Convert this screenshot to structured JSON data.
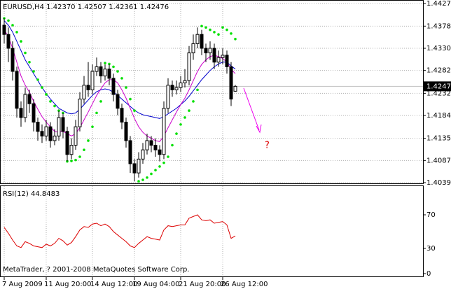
{
  "chart_data": [
    {
      "type": "candlestick",
      "title": "EURUSD,H4  1.42370 1.42507 1.42361 1.42476",
      "annotation": "?",
      "grid": true,
      "categories": [
        "7 Aug 2009",
        null,
        null,
        null,
        null,
        null,
        null,
        null,
        null,
        null,
        "11 Aug 20:00",
        null,
        null,
        null,
        null,
        null,
        null,
        null,
        null,
        null,
        null,
        "14 Aug 12:00",
        null,
        null,
        null,
        null,
        null,
        null,
        null,
        null,
        null,
        "19 Aug 04:00",
        null,
        null,
        null,
        null,
        null,
        null,
        null,
        null,
        null,
        null,
        "21 Aug 20:00",
        null,
        null,
        null,
        null,
        null,
        null,
        null,
        null,
        null,
        "26 Aug 12:00",
        null,
        null,
        null
      ],
      "open": [
        1.438,
        1.436,
        1.433,
        1.428,
        1.42,
        1.418,
        1.423,
        1.421,
        1.417,
        1.415,
        1.414,
        1.416,
        1.413,
        1.414,
        1.418,
        1.415,
        1.41,
        1.412,
        1.416,
        1.422,
        1.425,
        1.424,
        1.428,
        1.429,
        1.427,
        1.4285,
        1.4265,
        1.423,
        1.42,
        1.417,
        1.413,
        1.408,
        1.406,
        1.409,
        1.411,
        1.413,
        1.412,
        1.411,
        1.41,
        1.42,
        1.425,
        1.424,
        1.4245,
        1.4255,
        1.426,
        1.432,
        1.434,
        1.436,
        1.433,
        1.432,
        1.433,
        1.43,
        1.431,
        1.4315,
        1.429,
        1.4237
      ],
      "high": [
        1.4395,
        1.4375,
        1.4345,
        1.429,
        1.4215,
        1.4245,
        1.424,
        1.422,
        1.418,
        1.4165,
        1.4175,
        1.417,
        1.4155,
        1.4195,
        1.419,
        1.416,
        1.4135,
        1.4175,
        1.4235,
        1.427,
        1.43,
        1.4295,
        1.431,
        1.43,
        1.4295,
        1.4295,
        1.4275,
        1.424,
        1.421,
        1.418,
        1.414,
        1.409,
        1.4105,
        1.4125,
        1.4145,
        1.414,
        1.4135,
        1.412,
        1.4215,
        1.4265,
        1.426,
        1.426,
        1.427,
        1.4285,
        1.4335,
        1.436,
        1.4375,
        1.437,
        1.434,
        1.4345,
        1.434,
        1.4325,
        1.433,
        1.4325,
        1.43,
        1.42507
      ],
      "low": [
        1.434,
        1.43,
        1.426,
        1.418,
        1.416,
        1.417,
        1.419,
        1.415,
        1.413,
        1.4125,
        1.413,
        1.4115,
        1.412,
        1.413,
        1.4135,
        1.4085,
        1.409,
        1.411,
        1.415,
        1.421,
        1.4225,
        1.423,
        1.427,
        1.4255,
        1.426,
        1.425,
        1.4215,
        1.4185,
        1.4155,
        1.4115,
        1.406,
        1.4042,
        1.405,
        1.408,
        1.41,
        1.4105,
        1.4095,
        1.4085,
        1.409,
        1.419,
        1.4225,
        1.423,
        1.4235,
        1.4245,
        1.425,
        1.4305,
        1.433,
        1.4315,
        1.43,
        1.4305,
        1.4285,
        1.429,
        1.4295,
        1.4275,
        1.4205,
        1.42361
      ],
      "close": [
        1.436,
        1.433,
        1.428,
        1.42,
        1.418,
        1.423,
        1.421,
        1.417,
        1.415,
        1.414,
        1.416,
        1.413,
        1.414,
        1.418,
        1.415,
        1.41,
        1.412,
        1.416,
        1.422,
        1.425,
        1.424,
        1.428,
        1.429,
        1.427,
        1.4285,
        1.4265,
        1.423,
        1.42,
        1.417,
        1.413,
        1.408,
        1.406,
        1.409,
        1.411,
        1.413,
        1.412,
        1.411,
        1.41,
        1.42,
        1.425,
        1.424,
        1.4245,
        1.4255,
        1.426,
        1.432,
        1.434,
        1.436,
        1.433,
        1.432,
        1.433,
        1.43,
        1.431,
        1.4315,
        1.429,
        1.422,
        1.42476
      ],
      "ma_slow": {
        "color": "#0000cc",
        "values": [
          1.439,
          1.438,
          1.4365,
          1.4345,
          1.4325,
          1.4305,
          1.429,
          1.4275,
          1.426,
          1.4245,
          1.4232,
          1.422,
          1.421,
          1.42,
          1.4195,
          1.419,
          1.4188,
          1.419,
          1.4198,
          1.4208,
          1.4218,
          1.4228,
          1.4236,
          1.424,
          1.4242,
          1.424,
          1.4235,
          1.4228,
          1.422,
          1.4212,
          1.4204,
          1.4196,
          1.419,
          1.4186,
          1.4184,
          1.4182,
          1.418,
          1.4178,
          1.4182,
          1.4188,
          1.4194,
          1.42,
          1.4208,
          1.4216,
          1.4226,
          1.4238,
          1.425,
          1.4262,
          1.4272,
          1.4282,
          1.429,
          1.4296,
          1.43,
          1.43,
          1.4292,
          1.4285
        ]
      },
      "ma_fast": {
        "color": "#cc00cc",
        "values": [
          1.437,
          1.4355,
          1.433,
          1.43,
          1.427,
          1.425,
          1.4235,
          1.4215,
          1.4198,
          1.4182,
          1.417,
          1.416,
          1.415,
          1.4148,
          1.415,
          1.4145,
          1.414,
          1.4145,
          1.4158,
          1.4175,
          1.4192,
          1.421,
          1.4228,
          1.4242,
          1.4255,
          1.4262,
          1.4262,
          1.4255,
          1.424,
          1.4222,
          1.42,
          1.4178,
          1.416,
          1.4148,
          1.414,
          1.4135,
          1.413,
          1.4128,
          1.414,
          1.4158,
          1.4175,
          1.4192,
          1.4208,
          1.4222,
          1.424,
          1.426,
          1.428,
          1.4295,
          1.4305,
          1.4312,
          1.4315,
          1.4312,
          1.4308,
          1.43,
          1.4285,
          1.4275
        ]
      },
      "sar": {
        "color": "#00e000",
        "values": [
          1.4395,
          1.439,
          1.438,
          1.4365,
          1.4345,
          1.432,
          1.43,
          1.428,
          1.4262,
          1.4245,
          1.423,
          1.4215,
          1.4205,
          1.4195,
          1.419,
          1.4085,
          1.4086,
          1.4088,
          1.4095,
          1.411,
          1.413,
          1.416,
          1.419,
          1.4215,
          1.4298,
          1.4296,
          1.429,
          1.428,
          1.4265,
          1.4245,
          1.422,
          1.4195,
          1.4042,
          1.4045,
          1.405,
          1.4058,
          1.4066,
          1.4074,
          1.4082,
          1.4095,
          1.412,
          1.4145,
          1.4165,
          1.418,
          1.4195,
          1.4215,
          1.424,
          1.4378,
          1.4375,
          1.437,
          1.4365,
          1.436,
          1.4375,
          1.437,
          1.4362,
          1.435
        ]
      },
      "ylim": [
        1.4039,
        1.4427
      ],
      "yticks": [
        {
          "value": 1.4039,
          "label": "1.40390"
        },
        {
          "value": 1.4087,
          "label": "1.40870"
        },
        {
          "value": 1.4135,
          "label": "1.41350"
        },
        {
          "value": 1.41845,
          "label": "1.41845"
        },
        {
          "value": 1.42325,
          "label": "1.42325"
        },
        {
          "value": 1.4282,
          "label": "1.42820"
        },
        {
          "value": 1.433,
          "label": "1.43300"
        },
        {
          "value": 1.4378,
          "label": "1.43780"
        },
        {
          "value": 1.4427,
          "label": "1.44270"
        }
      ]
    },
    {
      "type": "line",
      "title": "RSI(12) 44.8483",
      "color": "#dd0000",
      "values": [
        55,
        48,
        40,
        33,
        31,
        38,
        36,
        33,
        32,
        31,
        35,
        33,
        36,
        42,
        39,
        34,
        37,
        44,
        52,
        56,
        55,
        59,
        60,
        57,
        59,
        56,
        50,
        46,
        42,
        38,
        33,
        31,
        36,
        40,
        44,
        42,
        41,
        40,
        52,
        57,
        56,
        57,
        58,
        58,
        66,
        68,
        70,
        64,
        63,
        64,
        60,
        61,
        62,
        58,
        42,
        44.8483
      ],
      "ylim": [
        0,
        100
      ],
      "yticks": [
        0,
        30,
        70
      ]
    }
  ],
  "footer": "MetaTrader, ? 2001-2008 MetaQuotes Software Corp."
}
